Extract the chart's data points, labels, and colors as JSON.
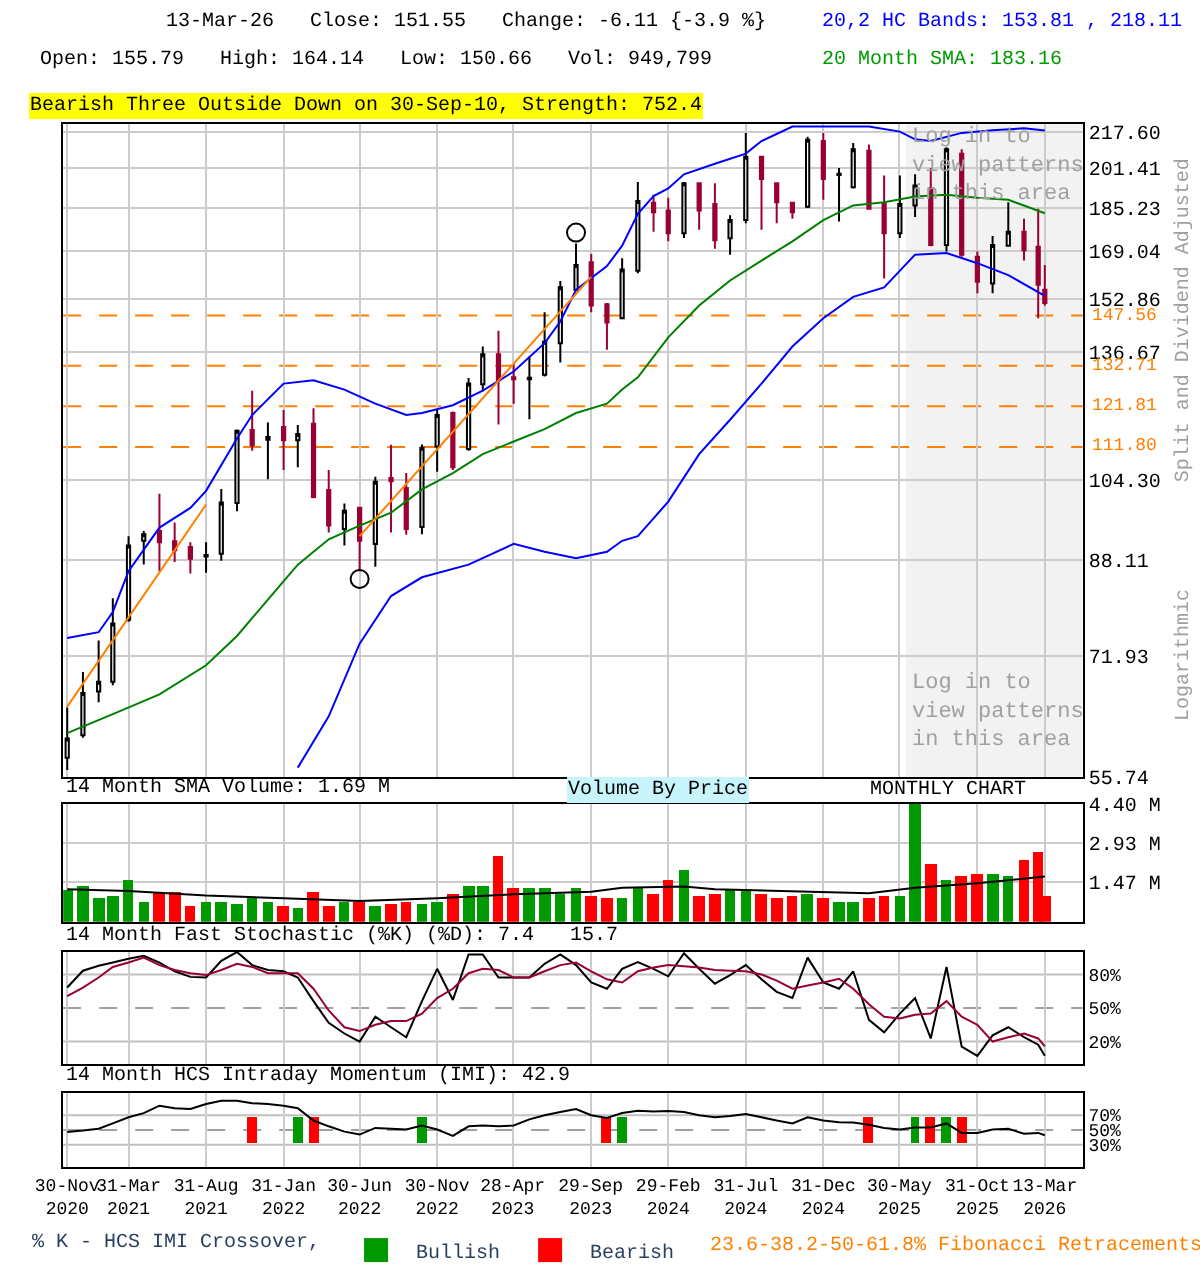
{
  "chart_data": [
    {
      "type": "candlestick",
      "log": "y",
      "grid": true,
      "tick_labels": "y",
      "ylabel": "Split and Dividend Adjusted",
      "x": [
        "2020-11-30",
        "2020-12-31",
        "2021-01-31",
        "2021-02-28",
        "2021-03-31",
        "2021-04-30",
        "2021-05-31",
        "2021-06-30",
        "2021-07-31",
        "2021-08-31",
        "2021-09-30",
        "2021-10-31",
        "2021-11-30",
        "2021-12-31",
        "2022-01-31",
        "2022-02-28",
        "2022-03-31",
        "2022-04-30",
        "2022-05-31",
        "2022-06-30",
        "2022-07-31",
        "2022-08-31",
        "2022-09-30",
        "2022-10-31",
        "2022-11-30",
        "2022-12-31",
        "2023-01-31",
        "2023-02-28",
        "2023-03-31",
        "2023-04-30",
        "2023-05-31",
        "2023-06-30",
        "2023-07-31",
        "2023-08-31",
        "2023-09-30",
        "2023-10-31",
        "2023-11-30",
        "2023-12-31",
        "2024-01-31",
        "2024-02-29",
        "2024-03-31",
        "2024-04-30",
        "2024-05-31",
        "2024-06-30",
        "2024-07-31",
        "2024-08-31",
        "2024-09-30",
        "2024-10-31",
        "2024-11-30",
        "2024-12-31",
        "2025-01-31",
        "2025-02-28",
        "2025-03-31",
        "2025-04-30",
        "2025-05-31",
        "2025-06-30",
        "2025-07-31",
        "2025-08-31",
        "2025-09-30",
        "2025-10-31",
        "2025-11-30",
        "2025-12-31",
        "2026-01-31",
        "2026-02-28",
        "2026-03-13"
      ],
      "ohlc": [
        [
          58.0,
          64.5,
          56.5,
          60.4
        ],
        [
          60.8,
          69.5,
          60.5,
          66.5
        ],
        [
          66.7,
          74.3,
          65.2,
          68.1
        ],
        [
          68.1,
          81.2,
          67.6,
          77.0
        ],
        [
          77.6,
          92.6,
          77.3,
          90.8
        ],
        [
          91.7,
          93.6,
          87.2,
          93.0
        ],
        [
          93.6,
          101.3,
          86.0,
          91.4
        ],
        [
          91.6,
          95.3,
          87.7,
          89.9
        ],
        [
          90.5,
          91.4,
          85.6,
          88.3
        ],
        [
          88.7,
          91.4,
          85.7,
          89.0
        ],
        [
          89.2,
          102.3,
          87.9,
          99.4
        ],
        [
          99.3,
          116.0,
          97.6,
          115.7
        ],
        [
          115.9,
          125.9,
          110.9,
          112.2
        ],
        [
          113.5,
          117.7,
          104.4,
          114.2
        ],
        [
          116.6,
          120.9,
          106.5,
          113.4
        ],
        [
          113.4,
          117.1,
          107.1,
          114.9
        ],
        [
          117.4,
          121.3,
          100.3,
          100.6
        ],
        [
          102.1,
          106.5,
          93.3,
          94.7
        ],
        [
          94.0,
          99.2,
          90.8,
          97.7
        ],
        [
          98.3,
          98.5,
          86.0,
          91.7
        ],
        [
          91.1,
          105.0,
          86.8,
          103.9
        ],
        [
          104.7,
          112.3,
          93.3,
          104.0
        ],
        [
          102.5,
          105.8,
          92.9,
          94.0
        ],
        [
          94.4,
          112.4,
          93.0,
          111.6
        ],
        [
          111.9,
          120.9,
          106.1,
          119.6
        ],
        [
          120.1,
          120.5,
          106.5,
          107.1
        ],
        [
          111.3,
          129.3,
          110.9,
          127.8
        ],
        [
          127.6,
          138.2,
          125.9,
          136.0
        ],
        [
          136.0,
          142.9,
          117.2,
          128.7
        ],
        [
          129.5,
          133.2,
          122.5,
          129.0
        ],
        [
          129.0,
          135.4,
          118.5,
          129.4
        ],
        [
          130.2,
          148.6,
          129.7,
          139.6
        ],
        [
          139.2,
          158.7,
          133.6,
          156.6
        ],
        [
          155.8,
          171.8,
          155.3,
          164.2
        ],
        [
          165.1,
          168.0,
          148.6,
          150.7
        ],
        [
          151.1,
          151.5,
          137.3,
          145.4
        ],
        [
          146.7,
          166.5,
          146.4,
          162.6
        ],
        [
          162.2,
          195.6,
          161.3,
          187.9
        ],
        [
          187.2,
          190.4,
          176.1,
          183.5
        ],
        [
          184.2,
          189.2,
          172.6,
          175.6
        ],
        [
          175.6,
          195.6,
          173.8,
          195.1
        ],
        [
          195.1,
          195.5,
          176.9,
          184.2
        ],
        [
          186.7,
          195.1,
          169.9,
          173.0
        ],
        [
          173.7,
          182.4,
          167.8,
          180.5
        ],
        [
          180.5,
          217.0,
          179.3,
          206.3
        ],
        [
          206.3,
          206.8,
          176.9,
          196.9
        ],
        [
          195.1,
          195.5,
          179.3,
          187.4
        ],
        [
          187.2,
          187.6,
          181.0,
          183.5
        ],
        [
          185.7,
          215.3,
          185.2,
          213.9
        ],
        [
          213.3,
          217.0,
          188.4,
          196.9
        ],
        [
          198.5,
          201.5,
          180.0,
          199.1
        ],
        [
          193.5,
          212.4,
          193.0,
          209.6
        ],
        [
          209.0,
          211.8,
          184.5,
          184.9
        ],
        [
          186.7,
          198.3,
          159.6,
          175.6
        ],
        [
          175.6,
          198.3,
          173.8,
          186.7
        ],
        [
          186.2,
          198.8,
          181.7,
          194.2
        ],
        [
          193.0,
          201.5,
          170.8,
          171.3
        ],
        [
          171.3,
          210.5,
          168.9,
          209.6
        ],
        [
          207.7,
          209.6,
          167.1,
          167.8
        ],
        [
          167.1,
          168.9,
          154.7,
          158.5
        ],
        [
          157.9,
          174.5,
          154.7,
          171.3
        ],
        [
          171.0,
          187.4,
          170.6,
          176.1
        ],
        [
          176.1,
          181.0,
          165.7,
          169.4
        ],
        [
          170.6,
          184.9,
          146.7,
          157.5
        ],
        [
          155.79,
          164.14,
          150.66,
          151.55
        ]
      ],
      "series": [
        {
          "type": "line",
          "color": "#0000ff",
          "x": [
            "2020-11-30",
            "2021-01-31",
            "2021-02-28",
            "2021-03-31",
            "2021-05-31",
            "2021-07-31",
            "2021-08-31",
            "2021-10-31",
            "2021-11-30",
            "2022-01-31",
            "2022-03-31",
            "2022-05-31",
            "2022-07-31",
            "2022-09-30",
            "2022-10-31",
            "2022-12-31",
            "2023-02-28",
            "2023-04-30",
            "2023-06-30",
            "2023-07-31",
            "2023-08-31",
            "2023-10-31",
            "2023-11-30",
            "2023-12-31",
            "2024-01-31",
            "2024-02-29",
            "2024-03-31",
            "2024-05-31",
            "2024-07-31",
            "2024-08-31",
            "2024-10-31",
            "2024-12-31",
            "2025-03-31",
            "2025-05-31",
            "2025-06-30",
            "2025-07-31",
            "2025-09-30",
            "2025-11-30",
            "2026-01-31",
            "2026-03-13"
          ],
          "values": [
            74.7,
            75.6,
            78.9,
            86.0,
            94.3,
            98.3,
            101.9,
            113.8,
            119.6,
            127.8,
            128.7,
            126.2,
            122.5,
            119.6,
            120.1,
            122.1,
            125.9,
            131.1,
            139.2,
            145.7,
            155.8,
            163.8,
            171.0,
            182.9,
            189.9,
            193.0,
            198.8,
            203.3,
            207.7,
            213.3,
            219.9,
            219.9,
            219.9,
            217.6,
            214.1,
            213.3,
            217.0,
            218.2,
            219.1,
            218.11
          ]
        },
        {
          "type": "line",
          "color": "#0000ff",
          "x": [
            "2022-02-28",
            "2022-04-30",
            "2022-06-30",
            "2022-08-31",
            "2022-10-31",
            "2023-01-31",
            "2023-04-30",
            "2023-06-30",
            "2023-08-31",
            "2023-10-31",
            "2023-11-30",
            "2023-12-31",
            "2024-02-29",
            "2024-04-30",
            "2024-06-30",
            "2024-08-31",
            "2024-10-31",
            "2024-12-31",
            "2025-02-28",
            "2025-04-30",
            "2025-06-30",
            "2025-08-31",
            "2025-10-31",
            "2025-12-31",
            "2026-03-13"
          ],
          "values": [
            56.8,
            63.3,
            73.8,
            81.6,
            84.9,
            87.2,
            91.1,
            89.6,
            88.4,
            89.6,
            91.7,
            92.6,
            99.6,
            110.1,
            118.4,
            127.8,
            138.2,
            146.7,
            153.5,
            156.6,
            167.8,
            168.4,
            164.8,
            160.7,
            153.81
          ]
        },
        {
          "type": "line",
          "color": "#008000",
          "x": [
            "2020-11-30",
            "2021-02-28",
            "2021-05-31",
            "2021-08-31",
            "2021-10-31",
            "2021-12-31",
            "2022-02-28",
            "2022-04-30",
            "2022-06-30",
            "2022-08-31",
            "2022-10-31",
            "2022-12-31",
            "2023-02-28",
            "2023-04-30",
            "2023-06-30",
            "2023-08-31",
            "2023-10-31",
            "2023-11-30",
            "2023-12-31",
            "2024-02-29",
            "2024-04-30",
            "2024-06-30",
            "2024-08-31",
            "2024-10-31",
            "2024-12-31",
            "2025-02-28",
            "2025-04-30",
            "2025-06-30",
            "2025-08-31",
            "2025-10-31",
            "2025-12-31",
            "2026-03-13"
          ],
          "values": [
            61.1,
            63.6,
            66.3,
            70.5,
            75.0,
            81.0,
            87.2,
            92.0,
            94.7,
            97.3,
            102.2,
            105.8,
            110.1,
            113.1,
            116.1,
            120.1,
            122.5,
            126.2,
            129.5,
            140.9,
            150.7,
            158.9,
            165.7,
            172.6,
            180.5,
            186.2,
            187.4,
            189.7,
            190.4,
            189.2,
            188.4,
            183.16
          ]
        },
        {
          "type": "line",
          "color": "#ff8000",
          "x": [
            "2020-11-30",
            "2021-08-31"
          ],
          "values": [
            64.6,
            99.0
          ]
        },
        {
          "type": "line",
          "color": "#ff8000",
          "x": [
            "2022-06-30",
            "2023-09-30"
          ],
          "values": [
            92.6,
            160.1
          ]
        },
        {
          "type": "scatter",
          "color": "#000000",
          "marker": "circle",
          "x": [
            "2022-06-30",
            "2023-08-31"
          ],
          "values": [
            84.6,
            175.8
          ]
        }
      ],
      "xlim": [
        "2020-11-22",
        "2026-05-27"
      ],
      "xticks": [
        {
          "value": "2020-11-30",
          "label": null
        },
        {
          "value": "2021-03-31",
          "label": null
        },
        {
          "value": "2021-08-31",
          "label": null
        },
        {
          "value": "2022-01-31",
          "label": null
        },
        {
          "value": "2022-06-30",
          "label": null
        },
        {
          "value": "2022-11-30",
          "label": null
        },
        {
          "value": "2023-04-28",
          "label": null
        },
        {
          "value": "2023-09-29",
          "label": null
        },
        {
          "value": "2024-02-29",
          "label": null
        },
        {
          "value": "2024-07-31",
          "label": null
        },
        {
          "value": "2024-12-31",
          "label": null
        },
        {
          "value": "2025-05-30",
          "label": null
        },
        {
          "value": "2025-10-31",
          "label": null
        },
        {
          "value": "2026-03-13",
          "label": null
        }
      ],
      "ylim": [
        55.74,
        221
      ],
      "yticks": [
        {
          "value": 55.74,
          "label": "55.74"
        },
        {
          "value": 71.93,
          "label": "71.93"
        },
        {
          "value": 88.11,
          "label": "88.11"
        },
        {
          "value": 104.3,
          "label": "104.30"
        },
        {
          "value": 136.67,
          "label": "136.67"
        },
        {
          "value": 152.86,
          "label": "152.86"
        },
        {
          "value": 169.04,
          "label": "169.04"
        },
        {
          "value": 185.23,
          "label": "185.23"
        },
        {
          "value": 201.41,
          "label": "201.41"
        },
        {
          "value": 217.6,
          "label": "217.60"
        }
      ],
      "ref_lines": [
        {
          "axis": "y",
          "value": 147.56,
          "label": "147.56",
          "color": "#ff8000",
          "line_style": "dashed"
        },
        {
          "axis": "y",
          "value": 132.71,
          "label": "132.71",
          "color": "#ff8000",
          "line_style": "dashed"
        },
        {
          "axis": "y",
          "value": 121.81,
          "label": "121.81",
          "color": "#ff8000",
          "line_style": "dashed"
        },
        {
          "axis": "y",
          "value": 111.8,
          "label": "111.80",
          "color": "#ff8000",
          "line_style": "dashed"
        }
      ],
      "bands": [
        {
          "axis": "x",
          "from": "2025-06-12",
          "to": "2026-05-27",
          "color": "#f2f2f2"
        }
      ],
      "annotations": [
        "13-Mar-26   Close: 151.55   Change: -6.11 {-3.9 %}",
        "Open: 155.79   High: 164.14   Low: 150.66   Vol: 949,799",
        "20,2 HC Bands: 153.81 , 218.11",
        "20 Month SMA: 183.16",
        "Bearish Three Outside Down on 30-Sep-10, Strength: 752.4",
        "Log in to view patterns in this area",
        "Log in to view patterns in this area",
        "Logarithmic"
      ]
    },
    {
      "type": "bar",
      "title": "14 Month SMA Volume: 1.69 M",
      "grid": true,
      "tick_labels": "y",
      "x": [
        "2020-11-30",
        "2020-12-31",
        "2021-01-31",
        "2021-02-28",
        "2021-03-31",
        "2021-04-30",
        "2021-05-31",
        "2021-06-30",
        "2021-07-31",
        "2021-08-31",
        "2021-09-30",
        "2021-10-31",
        "2021-11-30",
        "2021-12-31",
        "2022-01-31",
        "2022-02-28",
        "2022-03-31",
        "2022-04-30",
        "2022-05-31",
        "2022-06-30",
        "2022-07-31",
        "2022-08-31",
        "2022-09-30",
        "2022-10-31",
        "2022-11-30",
        "2022-12-31",
        "2023-01-31",
        "2023-02-28",
        "2023-03-31",
        "2023-04-30",
        "2023-05-31",
        "2023-06-30",
        "2023-07-31",
        "2023-08-31",
        "2023-09-30",
        "2023-10-31",
        "2023-11-30",
        "2023-12-31",
        "2024-01-31",
        "2024-02-29",
        "2024-03-31",
        "2024-04-30",
        "2024-05-31",
        "2024-06-30",
        "2024-07-31",
        "2024-08-31",
        "2024-09-30",
        "2024-10-31",
        "2024-11-30",
        "2024-12-31",
        "2025-01-31",
        "2025-02-28",
        "2025-03-31",
        "2025-04-30",
        "2025-05-31",
        "2025-06-30",
        "2025-07-31",
        "2025-08-31",
        "2025-09-30",
        "2025-10-31",
        "2025-11-30",
        "2025-12-31",
        "2026-01-31",
        "2026-02-28",
        "2026-03-13"
      ],
      "series": [
        {
          "type": "bar",
          "values": [
            1.22,
            1.37,
            0.93,
            1.0,
            1.59,
            0.78,
            1.12,
            1.12,
            0.63,
            0.78,
            0.78,
            0.71,
            0.88,
            0.78,
            0.63,
            0.56,
            1.15,
            0.63,
            0.73,
            0.73,
            0.63,
            0.68,
            0.76,
            0.68,
            0.78,
            1.07,
            1.37,
            1.37,
            2.49,
            1.29,
            1.29,
            1.29,
            1.03,
            1.29,
            1.0,
            0.93,
            0.93,
            1.27,
            1.07,
            1.56,
            1.95,
            1.0,
            1.07,
            1.17,
            1.17,
            1.07,
            0.93,
            0.98,
            1.07,
            0.93,
            0.78,
            0.78,
            0.93,
            1.0,
            0.98,
            4.4,
            2.17,
            1.59,
            1.73,
            1.81,
            1.81,
            1.71,
            2.32,
            2.61,
            0.95
          ],
          "colors": [
            "#009900",
            "#009900",
            "#009900",
            "#009900",
            "#009900",
            "#009900",
            "#ff0000",
            "#ff0000",
            "#ff0000",
            "#009900",
            "#009900",
            "#009900",
            "#009900",
            "#009900",
            "#ff0000",
            "#009900",
            "#ff0000",
            "#ff0000",
            "#009900",
            "#ff0000",
            "#009900",
            "#ff0000",
            "#ff0000",
            "#009900",
            "#009900",
            "#ff0000",
            "#009900",
            "#009900",
            "#ff0000",
            "#ff0000",
            "#009900",
            "#009900",
            "#009900",
            "#009900",
            "#ff0000",
            "#ff0000",
            "#009900",
            "#009900",
            "#ff0000",
            "#ff0000",
            "#009900",
            "#ff0000",
            "#ff0000",
            "#009900",
            "#009900",
            "#ff0000",
            "#ff0000",
            "#ff0000",
            "#009900",
            "#ff0000",
            "#009900",
            "#009900",
            "#ff0000",
            "#ff0000",
            "#009900",
            "#009900",
            "#ff0000",
            "#009900",
            "#ff0000",
            "#ff0000",
            "#009900",
            "#009900",
            "#ff0000",
            "#ff0000",
            "#ff0000"
          ]
        },
        {
          "type": "line",
          "color": "#000000",
          "x": [
            "2020-11-30",
            "2021-03-31",
            "2021-08-31",
            "2022-01-31",
            "2022-06-30",
            "2022-11-30",
            "2023-04-30",
            "2023-09-30",
            "2023-11-30",
            "2024-03-31",
            "2024-05-31",
            "2025-03-31",
            "2025-06-30",
            "2025-10-31",
            "2026-03-13"
          ],
          "values": [
            1.22,
            1.15,
            0.98,
            0.88,
            0.78,
            0.88,
            1.03,
            1.12,
            1.27,
            1.32,
            1.22,
            1.07,
            1.27,
            1.44,
            1.69
          ]
        }
      ],
      "xlim": [
        "2020-11-22",
        "2026-05-27"
      ],
      "xticks": [
        {
          "value": "2020-11-30",
          "label": null
        },
        {
          "value": "2021-03-31",
          "label": null
        },
        {
          "value": "2021-08-31",
          "label": null
        },
        {
          "value": "2022-01-31",
          "label": null
        },
        {
          "value": "2022-06-30",
          "label": null
        },
        {
          "value": "2022-11-30",
          "label": null
        },
        {
          "value": "2023-04-28",
          "label": null
        },
        {
          "value": "2023-09-29",
          "label": null
        },
        {
          "value": "2024-02-29",
          "label": null
        },
        {
          "value": "2024-07-31",
          "label": null
        },
        {
          "value": "2024-12-31",
          "label": null
        },
        {
          "value": "2025-05-30",
          "label": null
        },
        {
          "value": "2025-10-31",
          "label": null
        },
        {
          "value": "2026-03-13",
          "label": null
        }
      ],
      "ylim": [
        0,
        4.42
      ],
      "yticks": [
        {
          "value": 1.47,
          "label": "1.47 M"
        },
        {
          "value": 2.93,
          "label": "2.93 M"
        },
        {
          "value": 4.4,
          "label": "4.40 M"
        }
      ],
      "annotations": [
        "Volume By Price",
        "MONTHLY CHART"
      ]
    },
    {
      "type": "line",
      "title": "14 Month Fast Stochastic (%K) (%D): 7.4   15.7",
      "grid": "x",
      "tick_labels": "y",
      "x": [
        "2020-11-30",
        "2020-12-31",
        "2021-01-31",
        "2021-02-28",
        "2021-03-31",
        "2021-04-30",
        "2021-05-31",
        "2021-06-30",
        "2021-07-31",
        "2021-08-31",
        "2021-09-30",
        "2021-10-31",
        "2021-11-30",
        "2021-12-31",
        "2022-01-31",
        "2022-02-28",
        "2022-03-31",
        "2022-04-30",
        "2022-05-31",
        "2022-06-30",
        "2022-07-31",
        "2022-08-31",
        "2022-09-30",
        "2022-10-31",
        "2022-11-30",
        "2022-12-31",
        "2023-01-31",
        "2023-02-28",
        "2023-03-31",
        "2023-04-30",
        "2023-05-31",
        "2023-06-30",
        "2023-07-31",
        "2023-08-31",
        "2023-09-30",
        "2023-10-31",
        "2023-11-30",
        "2023-12-31",
        "2024-01-31",
        "2024-02-29",
        "2024-03-31",
        "2024-04-30",
        "2024-05-31",
        "2024-06-30",
        "2024-07-31",
        "2024-08-31",
        "2024-09-30",
        "2024-10-31",
        "2024-11-30",
        "2024-12-31",
        "2025-01-31",
        "2025-02-28",
        "2025-03-31",
        "2025-04-30",
        "2025-05-31",
        "2025-06-30",
        "2025-07-31",
        "2025-08-31",
        "2025-09-30",
        "2025-10-31",
        "2025-11-30",
        "2025-12-31",
        "2026-01-31",
        "2026-02-28",
        "2026-03-13"
      ],
      "series": [
        {
          "color": "#000000",
          "values": [
            68.3,
            83.3,
            87.8,
            90.6,
            93.9,
            96.7,
            90.6,
            82.8,
            77.8,
            77.2,
            92.2,
            100,
            88.3,
            83.9,
            82.8,
            77.2,
            56.1,
            36.7,
            27.2,
            20.0,
            42.2,
            32.8,
            23.9,
            56.1,
            85.0,
            57.2,
            97.8,
            97.8,
            77.2,
            77.2,
            77.2,
            89.4,
            97.8,
            88.3,
            72.8,
            67.2,
            85.0,
            91.1,
            85.0,
            78.3,
            98.9,
            85.0,
            71.7,
            79.4,
            88.3,
            75.6,
            64.4,
            58.9,
            95.0,
            72.8,
            67.2,
            82.8,
            39.4,
            28.3,
            45.0,
            58.9,
            22.8,
            86.7,
            15.6,
            7.2,
            25.6,
            32.8,
            23.9,
            17.2,
            7.4
          ]
        },
        {
          "color": "#990033",
          "values": [
            60.6,
            68.3,
            77.2,
            86.7,
            90.6,
            95.0,
            88.3,
            83.9,
            81.1,
            79.4,
            83.9,
            89.4,
            86.7,
            81.1,
            81.1,
            81.1,
            67.2,
            47.8,
            32.8,
            29.4,
            35.0,
            38.3,
            38.3,
            45.0,
            58.9,
            67.2,
            81.1,
            85.0,
            83.9,
            77.2,
            77.2,
            82.8,
            88.3,
            90.6,
            82.8,
            75.6,
            72.8,
            82.8,
            86.1,
            88.3,
            87.2,
            86.1,
            83.9,
            83.3,
            82.8,
            80.0,
            74.4,
            67.2,
            70.0,
            72.8,
            76.1,
            67.2,
            53.3,
            42.2,
            40.6,
            43.9,
            45.0,
            56.1,
            42.2,
            35.0,
            20.0,
            23.9,
            27.2,
            22.8,
            15.7
          ]
        }
      ],
      "xlim": [
        "2020-11-22",
        "2026-05-27"
      ],
      "xticks": [
        {
          "value": "2020-11-30",
          "label": null
        },
        {
          "value": "2021-03-31",
          "label": null
        },
        {
          "value": "2021-08-31",
          "label": null
        },
        {
          "value": "2022-01-31",
          "label": null
        },
        {
          "value": "2022-06-30",
          "label": null
        },
        {
          "value": "2022-11-30",
          "label": null
        },
        {
          "value": "2023-04-28",
          "label": null
        },
        {
          "value": "2023-09-29",
          "label": null
        },
        {
          "value": "2024-02-29",
          "label": null
        },
        {
          "value": "2024-07-31",
          "label": null
        },
        {
          "value": "2024-12-31",
          "label": null
        },
        {
          "value": "2025-05-30",
          "label": null
        },
        {
          "value": "2025-10-31",
          "label": null
        },
        {
          "value": "2026-03-13",
          "label": null
        }
      ],
      "ylim": [
        0,
        100
      ],
      "yticks": [
        {
          "value": 20,
          "label": "20%"
        },
        {
          "value": 50,
          "label": "50%"
        },
        {
          "value": 80,
          "label": "80%"
        }
      ],
      "ref_lines": [
        {
          "axis": "y",
          "value": 80,
          "color": "#c0c0c0",
          "line_style": "solid"
        },
        {
          "axis": "y",
          "value": 50,
          "color": "#a0a0a0",
          "line_style": "dashed"
        },
        {
          "axis": "y",
          "value": 20,
          "color": "#c0c0c0",
          "line_style": "solid"
        }
      ]
    },
    {
      "type": "line",
      "title": "14 Month HCS Intraday Momentum (IMI): 42.9",
      "grid": "x",
      "legend": "bottom",
      "legend_title": "% K - HCS IMI Crossover,",
      "x": [
        "2020-11-30",
        "2020-12-31",
        "2021-01-31",
        "2021-02-28",
        "2021-03-31",
        "2021-04-30",
        "2021-05-31",
        "2021-06-30",
        "2021-07-31",
        "2021-08-31",
        "2021-09-30",
        "2021-10-31",
        "2021-11-30",
        "2021-12-31",
        "2022-01-31",
        "2022-02-28",
        "2022-03-31",
        "2022-04-30",
        "2022-05-31",
        "2022-06-30",
        "2022-07-31",
        "2022-08-31",
        "2022-09-30",
        "2022-10-31",
        "2022-11-30",
        "2022-12-31",
        "2023-01-31",
        "2023-02-28",
        "2023-03-31",
        "2023-04-30",
        "2023-05-31",
        "2023-06-30",
        "2023-07-31",
        "2023-08-31",
        "2023-09-30",
        "2023-10-31",
        "2023-11-30",
        "2023-12-31",
        "2024-01-31",
        "2024-02-29",
        "2024-03-31",
        "2024-04-30",
        "2024-05-31",
        "2024-06-30",
        "2024-07-31",
        "2024-08-31",
        "2024-09-30",
        "2024-10-31",
        "2024-11-30",
        "2024-12-31",
        "2025-01-31",
        "2025-02-28",
        "2025-03-31",
        "2025-04-30",
        "2025-05-31",
        "2025-06-30",
        "2025-07-31",
        "2025-08-31",
        "2025-09-30",
        "2025-10-31",
        "2025-11-30",
        "2025-12-31",
        "2026-01-31",
        "2026-02-28",
        "2026-03-13"
      ],
      "series": [
        {
          "type": "bar",
          "name": "Bullish",
          "color": "#009900",
          "x": [
            "2022-02-28",
            "2022-10-31",
            "2023-11-30",
            "2025-06-30",
            "2025-08-31"
          ],
          "base": [
            32.2,
            32.2,
            32.2,
            32.2,
            32.2
          ],
          "values": [
            35.0,
            35.0,
            35.0,
            35.0,
            35.0
          ]
        },
        {
          "type": "bar",
          "name": "Bearish",
          "color": "#ff0000",
          "x": [
            "2021-11-30",
            "2022-03-31",
            "2023-10-31",
            "2025-03-31",
            "2025-07-31",
            "2025-09-30"
          ],
          "base": [
            32.2,
            32.2,
            32.2,
            32.2,
            32.2,
            32.2
          ],
          "values": [
            35.0,
            35.0,
            35.0,
            35.0,
            35.0,
            35.0
          ]
        },
        {
          "type": "line",
          "color": "#000000",
          "values": [
            47.2,
            49.4,
            51.7,
            58.9,
            67.2,
            72.8,
            82.8,
            79.4,
            78.3,
            85.0,
            89.4,
            89.4,
            86.1,
            85.0,
            82.8,
            79.4,
            62.8,
            55.0,
            47.8,
            43.9,
            52.8,
            51.7,
            50.6,
            56.1,
            50.6,
            42.2,
            55.0,
            56.1,
            55.0,
            56.1,
            64.4,
            70.0,
            74.4,
            78.3,
            70.0,
            66.1,
            72.8,
            76.1,
            75.0,
            75.6,
            74.4,
            70.0,
            67.2,
            68.9,
            71.7,
            67.2,
            62.8,
            58.9,
            67.2,
            62.8,
            60.6,
            60.0,
            57.2,
            52.8,
            50.6,
            53.3,
            53.3,
            58.9,
            46.1,
            46.1,
            50.6,
            51.7,
            45.0,
            46.1,
            42.9
          ]
        }
      ],
      "xlim": [
        "2020-11-22",
        "2026-05-27"
      ],
      "xticks": [
        {
          "value": "2020-11-30",
          "label": "30-Nov\n2020"
        },
        {
          "value": "2021-03-31",
          "label": "31-Mar\n2021"
        },
        {
          "value": "2021-08-31",
          "label": "31-Aug\n2021"
        },
        {
          "value": "2022-01-31",
          "label": "31-Jan\n2022"
        },
        {
          "value": "2022-06-30",
          "label": "30-Jun\n2022"
        },
        {
          "value": "2022-11-30",
          "label": "30-Nov\n2022"
        },
        {
          "value": "2023-04-28",
          "label": "28-Apr\n2023"
        },
        {
          "value": "2023-09-29",
          "label": "29-Sep\n2023"
        },
        {
          "value": "2024-02-29",
          "label": "29-Feb\n2024"
        },
        {
          "value": "2024-07-31",
          "label": "31-Jul\n2024"
        },
        {
          "value": "2024-12-31",
          "label": "31-Dec\n2024"
        },
        {
          "value": "2025-05-30",
          "label": "30-May\n2025"
        },
        {
          "value": "2025-10-31",
          "label": "31-Oct\n2025"
        },
        {
          "value": "2026-03-13",
          "label": "13-Mar\n2026"
        }
      ],
      "ylim": [
        0,
        100
      ],
      "yticks": [
        {
          "value": 30,
          "label": "30%"
        },
        {
          "value": 50,
          "label": "50%"
        },
        {
          "value": 70,
          "label": "70%"
        }
      ],
      "ref_lines": [
        {
          "axis": "y",
          "value": 70,
          "color": "#c0c0c0",
          "line_style": "solid"
        },
        {
          "axis": "y",
          "value": 50,
          "color": "#a0a0a0",
          "line_style": "dashed"
        },
        {
          "axis": "y",
          "value": 30,
          "color": "#c0c0c0",
          "line_style": "solid"
        }
      ],
      "annotations": [
        "23.6-38.2-50-61.8% Fibonacci Retracements"
      ]
    }
  ]
}
